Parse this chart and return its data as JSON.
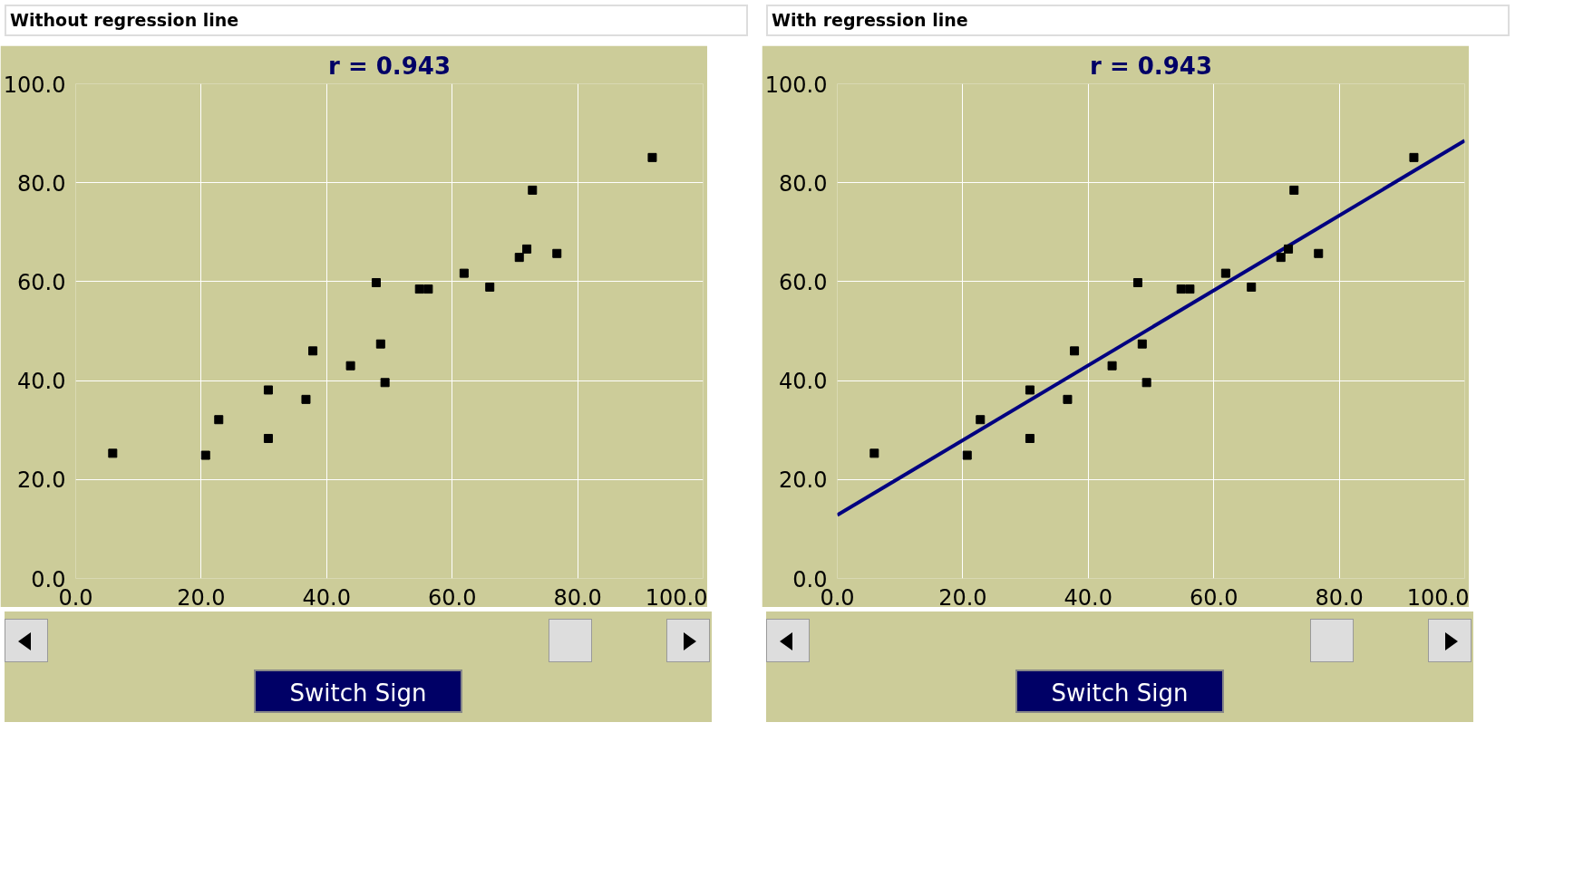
{
  "chart_data": [
    {
      "type": "scatter",
      "title": "Without regression line",
      "subtitle": "r = 0.943",
      "annotations": [
        "Switch Sign"
      ],
      "grid": true,
      "xlim": [
        0,
        100
      ],
      "ylim": [
        0,
        100
      ],
      "xticks": [
        {
          "value": 0,
          "label": "0.0"
        },
        {
          "value": 20,
          "label": "20.0"
        },
        {
          "value": 40,
          "label": "40.0"
        },
        {
          "value": 60,
          "label": "60.0"
        },
        {
          "value": 80,
          "label": "80.0"
        },
        {
          "value": 100,
          "label": "100.0"
        }
      ],
      "yticks": [
        {
          "value": 0,
          "label": "0.0"
        },
        {
          "value": 20,
          "label": "20.0"
        },
        {
          "value": 40,
          "label": "40.0"
        },
        {
          "value": 60,
          "label": "60.0"
        },
        {
          "value": 80,
          "label": "80.0"
        },
        {
          "value": 100,
          "label": "100.0"
        }
      ],
      "series": [
        {
          "color": "#000000",
          "marker": "square",
          "x": [
            5.9,
            20.7,
            22.8,
            30.7,
            30.7,
            36.7,
            37.8,
            43.8,
            47.9,
            48.6,
            49.3,
            54.8,
            56.2,
            61.9,
            66.0,
            70.7,
            71.9,
            72.8,
            76.7,
            91.9
          ],
          "values": [
            25.3,
            24.9,
            32.1,
            38.1,
            28.3,
            36.2,
            46.0,
            43.0,
            59.8,
            47.4,
            39.6,
            58.5,
            58.5,
            61.7,
            58.9,
            64.9,
            66.6,
            78.5,
            65.7,
            85.1
          ]
        }
      ]
    },
    {
      "type": "scatter",
      "title": "With regression line",
      "subtitle": "r = 0.943",
      "annotations": [
        "Switch Sign"
      ],
      "grid": true,
      "xlim": [
        0,
        100
      ],
      "ylim": [
        0,
        100
      ],
      "xticks": [
        {
          "value": 0,
          "label": "0.0"
        },
        {
          "value": 20,
          "label": "20.0"
        },
        {
          "value": 40,
          "label": "40.0"
        },
        {
          "value": 60,
          "label": "60.0"
        },
        {
          "value": 80,
          "label": "80.0"
        },
        {
          "value": 100,
          "label": "100.0"
        }
      ],
      "yticks": [
        {
          "value": 0,
          "label": "0.0"
        },
        {
          "value": 20,
          "label": "20.0"
        },
        {
          "value": 40,
          "label": "40.0"
        },
        {
          "value": 60,
          "label": "60.0"
        },
        {
          "value": 80,
          "label": "80.0"
        },
        {
          "value": 100,
          "label": "100.0"
        }
      ],
      "series": [
        {
          "color": "#000000",
          "marker": "square",
          "x": [
            5.9,
            20.7,
            22.8,
            30.7,
            30.7,
            36.7,
            37.8,
            43.8,
            47.9,
            48.6,
            49.3,
            54.8,
            56.2,
            61.9,
            66.0,
            70.7,
            71.9,
            72.8,
            76.7,
            91.9
          ],
          "values": [
            25.3,
            24.9,
            32.1,
            38.1,
            28.3,
            36.2,
            46.0,
            43.0,
            59.8,
            47.4,
            39.6,
            58.5,
            58.5,
            61.7,
            58.9,
            64.9,
            66.6,
            78.5,
            65.7,
            85.1
          ]
        },
        {
          "type": "line",
          "color": "#000080",
          "x": [
            0,
            100
          ],
          "values": [
            12.8,
            88.5
          ]
        }
      ]
    }
  ]
}
